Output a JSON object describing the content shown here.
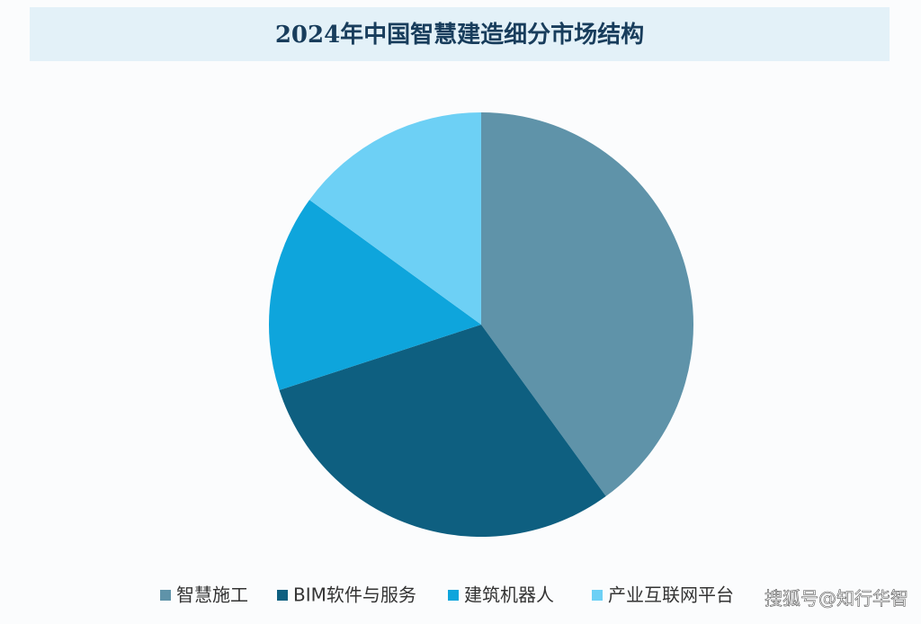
{
  "chart_data": {
    "type": "pie",
    "title": "2024年中国智慧建造细分市场结构",
    "categories": [
      "智慧施工",
      "BIM软件与服务",
      "建筑机器人",
      "产业互联网平台"
    ],
    "values": [
      40,
      30,
      15,
      15
    ],
    "colors": [
      "#5f93a9",
      "#0e5f80",
      "#0ea5dc",
      "#6dd0f5"
    ],
    "legend": "bottom"
  },
  "watermark": "搜狐号@知行华智"
}
